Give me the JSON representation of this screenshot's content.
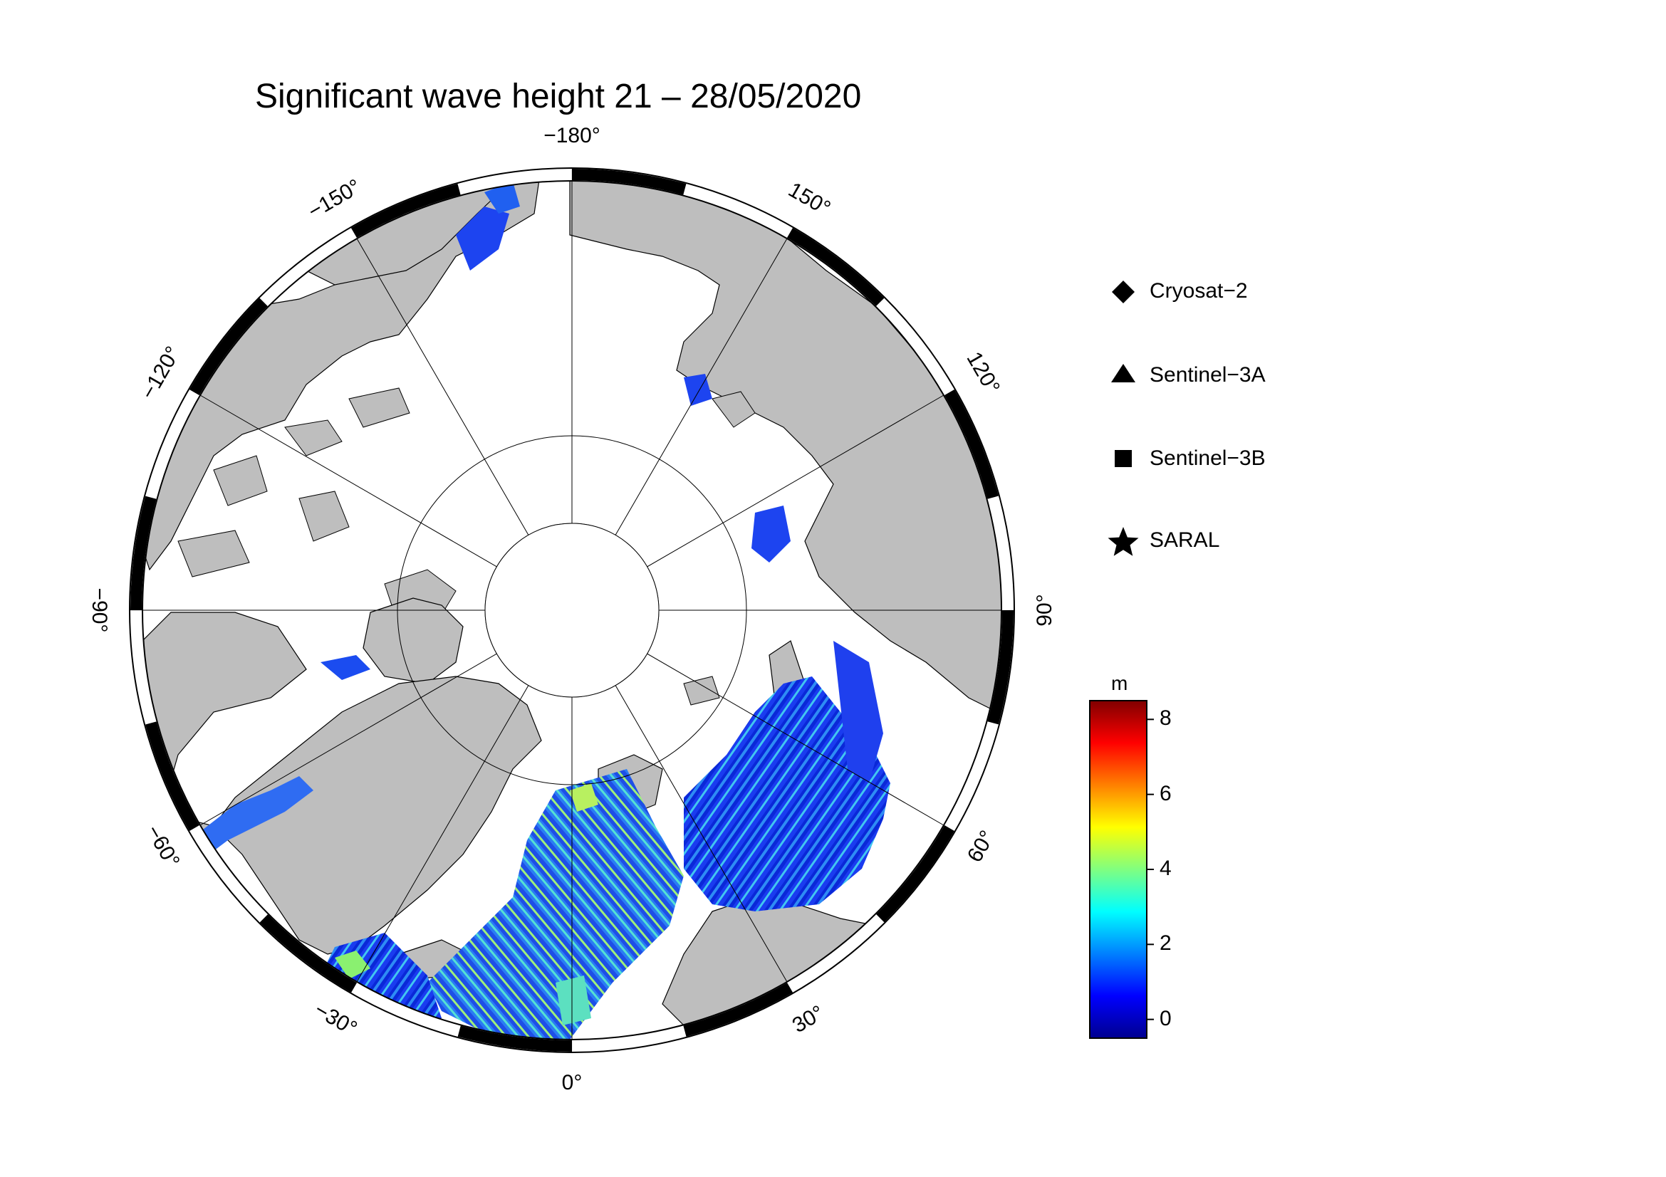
{
  "title": "Significant wave height 21 – 28/05/2020",
  "map": {
    "projection": "north-polar-stereographic",
    "longitude_labels": [
      {
        "lon": 180,
        "text": "−180°"
      },
      {
        "lon": 150,
        "text": "150°"
      },
      {
        "lon": 120,
        "text": "120°"
      },
      {
        "lon": 90,
        "text": "90°"
      },
      {
        "lon": 60,
        "text": "60°"
      },
      {
        "lon": 30,
        "text": "30°"
      },
      {
        "lon": 0,
        "text": "0°"
      },
      {
        "lon": -30,
        "text": "−30°"
      },
      {
        "lon": -60,
        "text": "−60°"
      },
      {
        "lon": -90,
        "text": "−90°"
      },
      {
        "lon": -120,
        "text": "−120°"
      },
      {
        "lon": -150,
        "text": "−150°"
      }
    ],
    "colors": {
      "land": "#bebebe",
      "sea_ice": "#ffffff",
      "coast": "#000000"
    }
  },
  "legend": {
    "items": [
      {
        "symbol": "diamond",
        "label": "Cryosat−2"
      },
      {
        "symbol": "triangle",
        "label": "Sentinel−3A"
      },
      {
        "symbol": "square",
        "label": "Sentinel−3B"
      },
      {
        "symbol": "star",
        "label": "SARAL"
      }
    ]
  },
  "colorbar": {
    "unit": "m",
    "min": -0.5,
    "max": 8.5,
    "ticks": [
      "0",
      "2",
      "4",
      "6",
      "8"
    ],
    "colormap": [
      "#00008f",
      "#0000ff",
      "#0080ff",
      "#00ffff",
      "#80ff80",
      "#ffff00",
      "#ff8000",
      "#ff0000",
      "#800000"
    ]
  }
}
